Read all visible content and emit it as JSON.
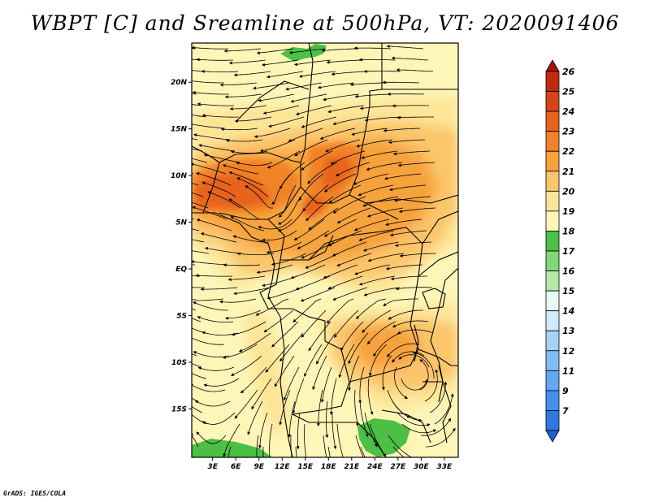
{
  "title": "WBPT [C] and Sreamline at 500hPa, VT: 2020091406",
  "credit": "GrADS: IGES/COLA",
  "axes": {
    "lat_labels": [
      {
        "text": "20N",
        "lat": 20
      },
      {
        "text": "15N",
        "lat": 15
      },
      {
        "text": "10N",
        "lat": 10
      },
      {
        "text": "5N",
        "lat": 5
      },
      {
        "text": "EQ",
        "lat": 0
      },
      {
        "text": "5S",
        "lat": -5
      },
      {
        "text": "10S",
        "lat": -10
      },
      {
        "text": "15S",
        "lat": -15
      }
    ],
    "lon_labels": [
      {
        "text": "3E",
        "lon": 3
      },
      {
        "text": "6E",
        "lon": 6
      },
      {
        "text": "9E",
        "lon": 9
      },
      {
        "text": "12E",
        "lon": 12
      },
      {
        "text": "15E",
        "lon": 15
      },
      {
        "text": "18E",
        "lon": 18
      },
      {
        "text": "21E",
        "lon": 21
      },
      {
        "text": "24E",
        "lon": 24
      },
      {
        "text": "27E",
        "lon": 27
      },
      {
        "text": "30E",
        "lon": 30
      },
      {
        "text": "33E",
        "lon": 33
      }
    ],
    "lon_range": [
      0.3,
      34.8
    ],
    "lat_range": [
      -20.2,
      24.2
    ]
  },
  "colorbar": {
    "labels": [
      "7",
      "9",
      "11",
      "12",
      "13",
      "14",
      "15",
      "16",
      "17",
      "18",
      "19",
      "20",
      "21",
      "22",
      "23",
      "24",
      "25",
      "26"
    ],
    "colors": [
      "#1f5fd6",
      "#2f78e4",
      "#4690ee",
      "#63a8f2",
      "#84bdf6",
      "#a6d2f8",
      "#cdebfb",
      "#e8f8f5",
      "#b6e9aa",
      "#82d876",
      "#4cbf45",
      "#fdf6b8",
      "#fde598",
      "#fbc56a",
      "#f7a33c",
      "#f28228",
      "#e8641b",
      "#d54316",
      "#c12a12",
      "#a51010"
    ]
  },
  "palette": {
    "c19": "#fdf6b8",
    "c20": "#fde598",
    "c21": "#fbc56a",
    "c22": "#f7a33c",
    "c23": "#f28228",
    "c24": "#e8641b",
    "c18": "#4cbf45",
    "c17": "#82d876"
  }
}
